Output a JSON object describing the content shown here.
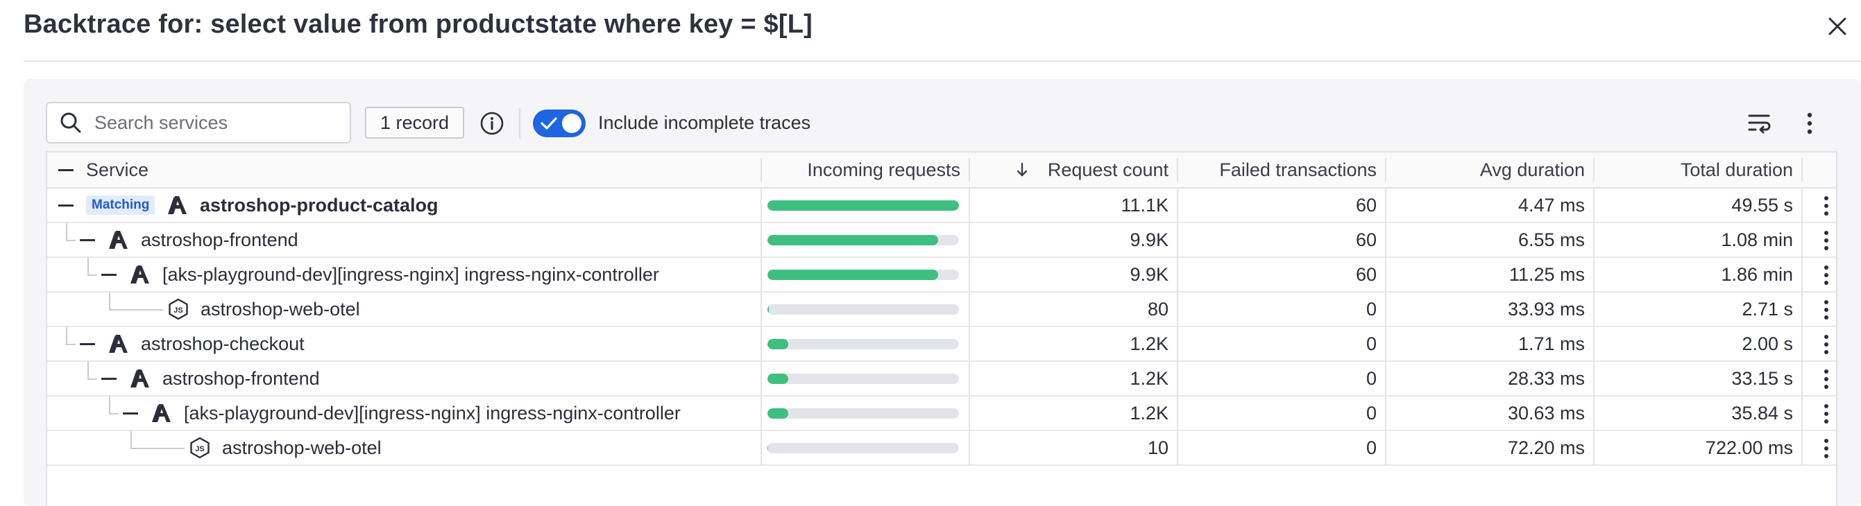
{
  "header": {
    "title": "Backtrace for: select value from productstate where key = $[L]"
  },
  "toolbar": {
    "search_placeholder": "Search services",
    "search_value": "",
    "record_count": "1 record",
    "include_incomplete_label": "Include incomplete traces",
    "include_incomplete_enabled": true
  },
  "columns": {
    "service": "Service",
    "incoming": "Incoming requests",
    "request_count": "Request count",
    "failed": "Failed transactions",
    "avg": "Avg duration",
    "total": "Total duration"
  },
  "badges": {
    "matching": "Matching"
  },
  "colors": {
    "accent": "#1f64e0",
    "bar": "#3fbf7f",
    "bar_track": "#e3e4e9"
  },
  "rows": [
    {
      "service": "astroshop-product-catalog",
      "icon": "azure-icon",
      "incoming_fraction": 1.0,
      "request_count": "11.1K",
      "failed": "60",
      "avg": "4.47 ms",
      "total": "49.55 s"
    },
    {
      "service": "astroshop-frontend",
      "icon": "azure-icon",
      "incoming_fraction": 0.89,
      "request_count": "9.9K",
      "failed": "60",
      "avg": "6.55 ms",
      "total": "1.08 min"
    },
    {
      "service": "[aks-playground-dev][ingress-nginx] ingress-nginx-controller",
      "icon": "azure-icon",
      "incoming_fraction": 0.89,
      "request_count": "9.9K",
      "failed": "60",
      "avg": "11.25 ms",
      "total": "1.86 min"
    },
    {
      "service": "astroshop-web-otel",
      "icon": "nodejs-icon",
      "incoming_fraction": 0.007,
      "request_count": "80",
      "failed": "0",
      "avg": "33.93 ms",
      "total": "2.71 s"
    },
    {
      "service": "astroshop-checkout",
      "icon": "azure-icon",
      "incoming_fraction": 0.108,
      "request_count": "1.2K",
      "failed": "0",
      "avg": "1.71 ms",
      "total": "2.00 s"
    },
    {
      "service": "astroshop-frontend",
      "icon": "azure-icon",
      "incoming_fraction": 0.108,
      "request_count": "1.2K",
      "failed": "0",
      "avg": "28.33 ms",
      "total": "33.15 s"
    },
    {
      "service": "[aks-playground-dev][ingress-nginx] ingress-nginx-controller",
      "icon": "azure-icon",
      "incoming_fraction": 0.108,
      "request_count": "1.2K",
      "failed": "0",
      "avg": "30.63 ms",
      "total": "35.84 s"
    },
    {
      "service": "astroshop-web-otel",
      "icon": "nodejs-icon",
      "incoming_fraction": 0.001,
      "request_count": "10",
      "failed": "0",
      "avg": "72.20 ms",
      "total": "722.00 ms"
    }
  ]
}
